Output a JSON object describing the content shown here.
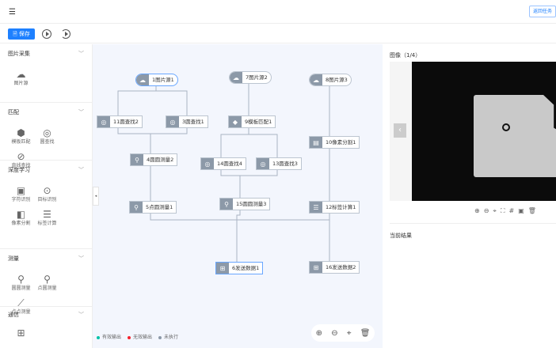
{
  "header": {
    "menu_icon": "menu-fold-icon",
    "return_label": "返回任务"
  },
  "toolbar": {
    "save_label": "保存",
    "run_icon": "play-icon",
    "run_loop_icon": "replay-icon"
  },
  "sidebar": {
    "sections": [
      {
        "title": "图片采集",
        "items": [
          {
            "label": "图片源",
            "icon": "cloud-image-icon"
          }
        ]
      },
      {
        "title": "匹配",
        "items": [
          {
            "label": "模板匹配",
            "icon": "cube-icon"
          },
          {
            "label": "圆查找",
            "icon": "circle-search-icon"
          },
          {
            "label": "直线查找",
            "icon": "line-search-icon"
          }
        ]
      },
      {
        "title": "深度学习",
        "items": [
          {
            "label": "字符识别",
            "icon": "ocr-icon"
          },
          {
            "label": "目标识别",
            "icon": "target-icon"
          },
          {
            "label": "像素分割",
            "icon": "segment-icon"
          },
          {
            "label": "标签计算",
            "icon": "label-calc-icon"
          }
        ]
      },
      {
        "title": "测量",
        "items": [
          {
            "label": "圆圆测量",
            "icon": "circle-circle-icon"
          },
          {
            "label": "点圆测量",
            "icon": "point-circle-icon"
          },
          {
            "label": "点点测量",
            "icon": "point-point-icon"
          }
        ]
      },
      {
        "title": "通信",
        "items": [
          {
            "label": "",
            "icon": "send-data-icon"
          }
        ]
      }
    ]
  },
  "nodes": [
    {
      "label": "1图片源1",
      "icon": "☁"
    },
    {
      "label": "7图片源2",
      "icon": "☁"
    },
    {
      "label": "8图片源3",
      "icon": "☁"
    },
    {
      "label": "11圆查找2",
      "icon": "◎"
    },
    {
      "label": "3圆查找1",
      "icon": "◎"
    },
    {
      "label": "9模板匹配1",
      "icon": "◆"
    },
    {
      "label": "10像素分割1",
      "icon": "▤"
    },
    {
      "label": "4圆圆测量2",
      "icon": "⚲"
    },
    {
      "label": "14圆查找4",
      "icon": "◎"
    },
    {
      "label": "13圆查找3",
      "icon": "◎"
    },
    {
      "label": "5点圆测量1",
      "icon": "⚲"
    },
    {
      "label": "15圆圆测量3",
      "icon": "⚲"
    },
    {
      "label": "12标签计算1",
      "icon": "☰"
    },
    {
      "label": "6发送数据1",
      "icon": "⊞"
    },
    {
      "label": "16发送数据2",
      "icon": "⊞"
    }
  ],
  "legend": [
    {
      "label": "有效输出",
      "color": "#00c2a8"
    },
    {
      "label": "无效输出",
      "color": "#f5222d"
    },
    {
      "label": "未执行",
      "color": "#8c99a8"
    }
  ],
  "canvas_tools": [
    "zoom-in-icon",
    "zoom-out-icon",
    "locate-icon",
    "delete-icon"
  ],
  "right_panel": {
    "image_title": "图像（1/4）",
    "result_title": "当前结果"
  }
}
